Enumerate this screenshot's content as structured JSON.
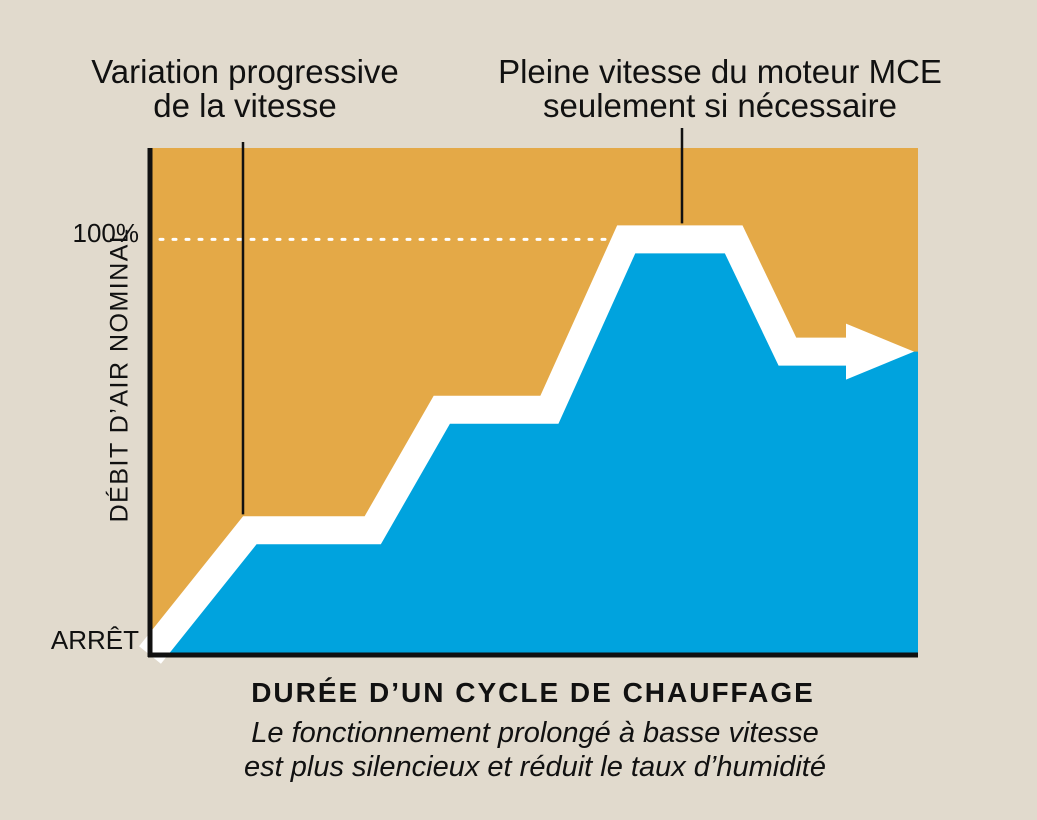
{
  "colors": {
    "background": "#e1dacd",
    "plot_background": "#e4a947",
    "area_fill": "#00a3de",
    "step_line": "#ffffff",
    "axis": "#111111"
  },
  "annotations": {
    "left_line1": "Variation progressive",
    "left_line2": "de la vitesse",
    "right_line1": "Pleine vitesse du moteur MCE",
    "right_line2": "seulement si nécessaire"
  },
  "chart_data": {
    "type": "area",
    "ylabel": "DÉBIT D’AIR NOMINAL",
    "xlabel": "DURÉE D’UN CYCLE DE CHAUFFAGE",
    "subtitle_line1": "Le fonctionnement prolongé à basse vitesse",
    "subtitle_line2": "est plus silencieux et réduit le taux d’humidité",
    "y_tick_labels": [
      "ARRÊT",
      "100%"
    ],
    "ylim": [
      0,
      122
    ],
    "xlim": [
      0,
      100
    ],
    "reference_line": {
      "y": 100,
      "style": "dotted"
    },
    "series": [
      {
        "x": [
          0,
          13,
          29,
          38,
          52,
          62,
          76,
          83,
          100
        ],
        "y": [
          0,
          30,
          30,
          59,
          59,
          100,
          100,
          73,
          73
        ]
      }
    ],
    "end_arrow": true,
    "grid": false,
    "legend": "none"
  }
}
